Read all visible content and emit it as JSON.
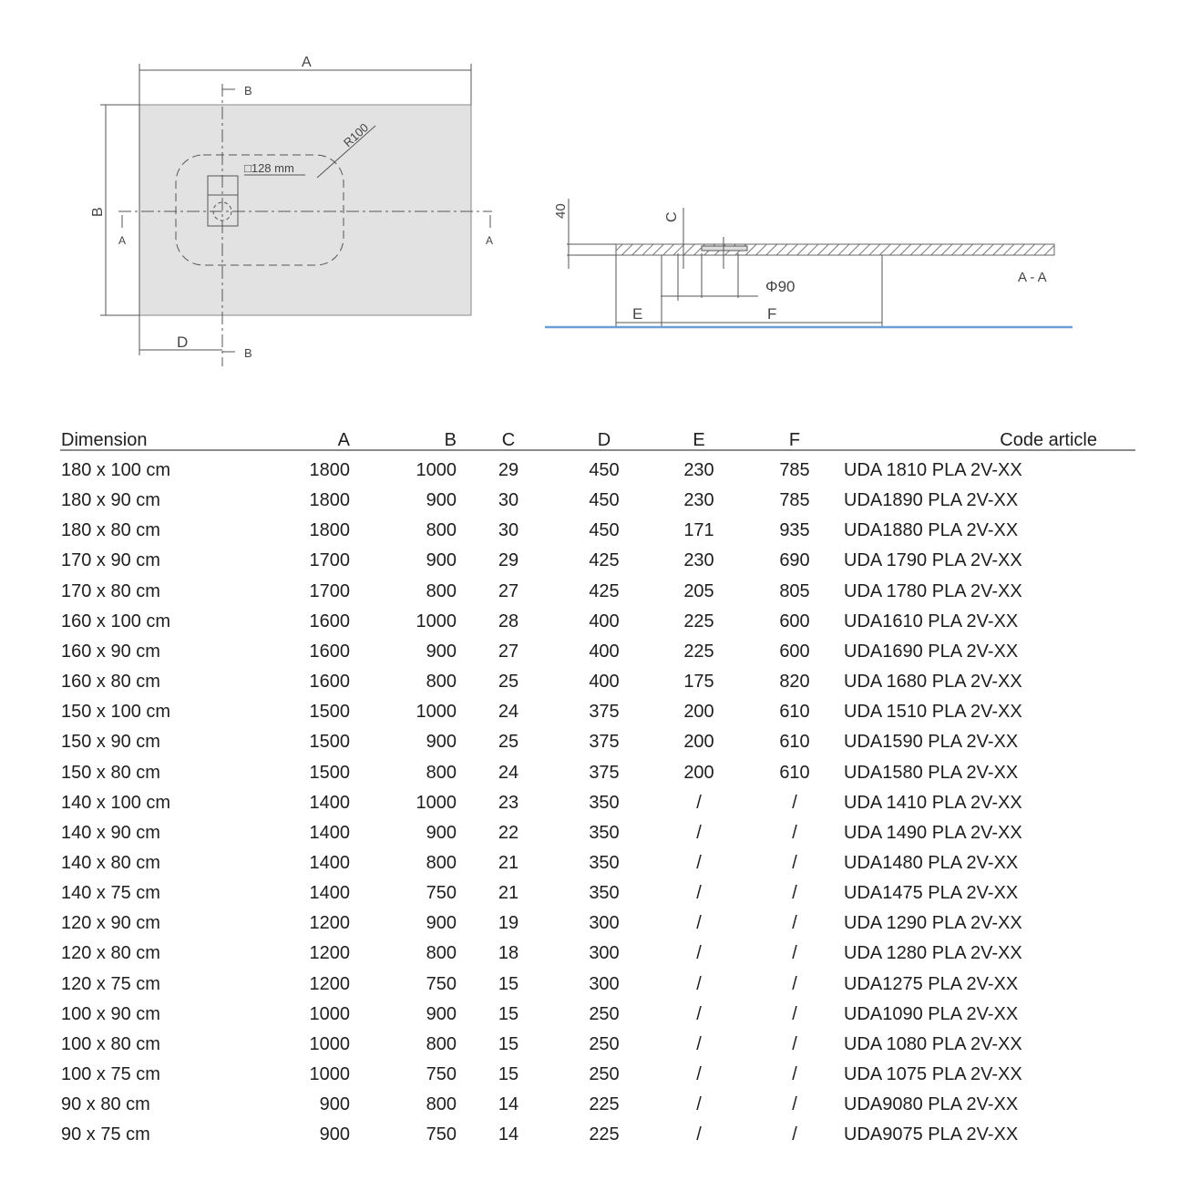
{
  "drawing": {
    "plan": {
      "width_label": "A",
      "height_label": "B",
      "offset_label": "D",
      "section_b_top": "B",
      "section_b_bottom": "B",
      "section_a_left": "A",
      "section_a_right": "A",
      "drain_size": "□128 mm",
      "radius": "R100"
    },
    "section": {
      "thickness": "40",
      "depth_label": "C",
      "pipe": "Φ90",
      "e_label": "E",
      "f_label": "F",
      "title": "A - A"
    },
    "colors": {
      "tray": "#e2e2e2",
      "floor": "#6a9fd8",
      "lines": "#555555"
    }
  },
  "table": {
    "headers": [
      "Dimension",
      "A",
      "B",
      "C",
      "D",
      "E",
      "F",
      "Code article"
    ],
    "rows": [
      [
        "180 x 100 cm",
        "1800",
        "1000",
        "29",
        "450",
        "230",
        "785",
        "UDA 1810 PLA 2V-XX"
      ],
      [
        "180 x 90 cm",
        "1800",
        "900",
        "30",
        "450",
        "230",
        "785",
        "UDA1890 PLA 2V-XX"
      ],
      [
        "180 x 80 cm",
        "1800",
        "800",
        "30",
        "450",
        "171",
        "935",
        "UDA1880 PLA 2V-XX"
      ],
      [
        "170 x 90 cm",
        "1700",
        "900",
        "29",
        "425",
        "230",
        "690",
        "UDA 1790 PLA 2V-XX"
      ],
      [
        "170 x 80 cm",
        "1700",
        "800",
        "27",
        "425",
        "205",
        "805",
        "UDA 1780 PLA 2V-XX"
      ],
      [
        "160 x 100 cm",
        "1600",
        "1000",
        "28",
        "400",
        "225",
        "600",
        "UDA1610 PLA 2V-XX"
      ],
      [
        "160 x 90 cm",
        "1600",
        "900",
        "27",
        "400",
        "225",
        "600",
        "UDA1690 PLA 2V-XX"
      ],
      [
        "160 x 80 cm",
        "1600",
        "800",
        "25",
        "400",
        "175",
        "820",
        "UDA 1680 PLA 2V-XX"
      ],
      [
        "150 x 100 cm",
        "1500",
        "1000",
        "24",
        "375",
        "200",
        "610",
        "UDA 1510 PLA 2V-XX"
      ],
      [
        "150 x 90 cm",
        "1500",
        "900",
        "25",
        "375",
        "200",
        "610",
        "UDA1590 PLA 2V-XX"
      ],
      [
        "150 x 80 cm",
        "1500",
        "800",
        "24",
        "375",
        "200",
        "610",
        "UDA1580 PLA 2V-XX"
      ],
      [
        "140 x 100 cm",
        "1400",
        "1000",
        "23",
        "350",
        "/",
        "/",
        "UDA 1410 PLA 2V-XX"
      ],
      [
        "140 x 90 cm",
        "1400",
        "900",
        "22",
        "350",
        "/",
        "/",
        "UDA 1490 PLA 2V-XX"
      ],
      [
        "140 x 80 cm",
        "1400",
        "800",
        "21",
        "350",
        "/",
        "/",
        "UDA1480 PLA 2V-XX"
      ],
      [
        "140 x 75 cm",
        "1400",
        "750",
        "21",
        "350",
        "/",
        "/",
        "UDA1475 PLA 2V-XX"
      ],
      [
        "120 x 90 cm",
        "1200",
        "900",
        "19",
        "300",
        "/",
        "/",
        "UDA 1290 PLA 2V-XX"
      ],
      [
        "120 x 80 cm",
        "1200",
        "800",
        "18",
        "300",
        "/",
        "/",
        "UDA 1280 PLA 2V-XX"
      ],
      [
        "120 x 75 cm",
        "1200",
        "750",
        "15",
        "300",
        "/",
        "/",
        "UDA1275 PLA 2V-XX"
      ],
      [
        "100 x 90 cm",
        "1000",
        "900",
        "15",
        "250",
        "/",
        "/",
        "UDA1090 PLA 2V-XX"
      ],
      [
        "100 x 80 cm",
        "1000",
        "800",
        "15",
        "250",
        "/",
        "/",
        "UDA 1080 PLA 2V-XX"
      ],
      [
        "100 x 75 cm",
        "1000",
        "750",
        "15",
        "250",
        "/",
        "/",
        "UDA 1075 PLA 2V-XX"
      ],
      [
        "90 x 80 cm",
        "900",
        "800",
        "14",
        "225",
        "/",
        "/",
        "UDA9080 PLA 2V-XX"
      ],
      [
        "90 x 75 cm",
        "900",
        "750",
        "14",
        "225",
        "/",
        "/",
        "UDA9075 PLA 2V-XX"
      ]
    ]
  }
}
